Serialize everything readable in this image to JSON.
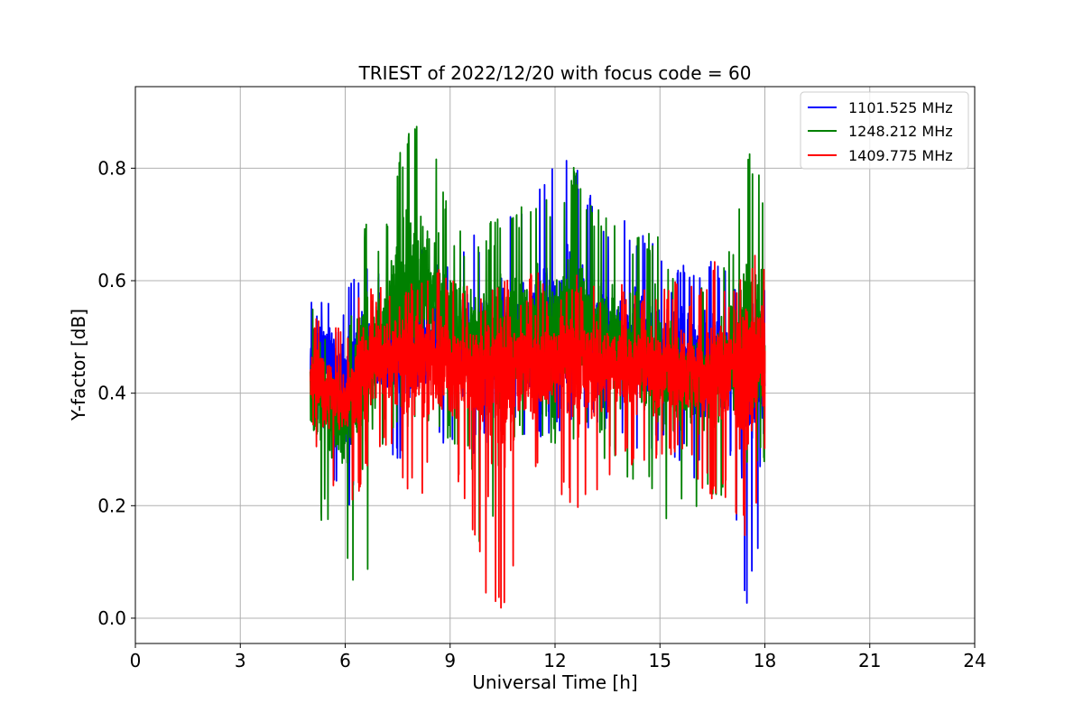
{
  "chart_data": {
    "type": "line",
    "title": "TRIEST of 2022/12/20 with focus code = 60",
    "xlabel": "Universal Time [h]",
    "ylabel": "Y-factor [dB]",
    "xlim": [
      0,
      24
    ],
    "ylim": [
      -0.045,
      0.945
    ],
    "xticks": [
      0,
      3,
      6,
      9,
      12,
      15,
      18,
      21,
      24
    ],
    "xtick_labels": [
      "0",
      "3",
      "6",
      "9",
      "12",
      "15",
      "18",
      "21",
      "24"
    ],
    "yticks": [
      0.0,
      0.2,
      0.4,
      0.6,
      0.8
    ],
    "ytick_labels": [
      "0.0",
      "0.2",
      "0.4",
      "0.6",
      "0.8"
    ],
    "grid": true,
    "legend_position": "top-right",
    "time_range_hours": [
      5.0,
      18.0
    ],
    "series": [
      {
        "name": "1101.525 MHz",
        "color": "#0000ff",
        "envelope": {
          "x": [
            5.0,
            5.5,
            6.0,
            6.5,
            7.0,
            7.5,
            8.0,
            8.5,
            9.0,
            9.5,
            10.0,
            10.5,
            11.0,
            11.5,
            12.0,
            12.5,
            13.0,
            13.5,
            14.0,
            14.5,
            15.0,
            15.5,
            16.0,
            16.5,
            17.0,
            17.5,
            18.0
          ],
          "mean": [
            0.46,
            0.47,
            0.43,
            0.45,
            0.47,
            0.47,
            0.48,
            0.49,
            0.48,
            0.47,
            0.49,
            0.5,
            0.5,
            0.5,
            0.51,
            0.51,
            0.5,
            0.49,
            0.48,
            0.48,
            0.47,
            0.47,
            0.47,
            0.46,
            0.46,
            0.44,
            0.44
          ],
          "max": [
            0.61,
            0.6,
            0.58,
            0.66,
            0.62,
            0.64,
            0.66,
            0.66,
            0.64,
            0.68,
            0.71,
            0.76,
            0.76,
            0.78,
            0.82,
            0.83,
            0.76,
            0.72,
            0.72,
            0.7,
            0.68,
            0.66,
            0.64,
            0.64,
            0.61,
            0.6,
            0.62
          ],
          "min": [
            0.3,
            0.32,
            0.12,
            0.28,
            0.3,
            0.28,
            0.3,
            0.32,
            0.3,
            0.27,
            0.3,
            0.33,
            0.3,
            0.32,
            0.33,
            0.32,
            0.34,
            0.32,
            0.3,
            0.29,
            0.3,
            0.28,
            0.24,
            0.22,
            0.27,
            0.0,
            0.18
          ]
        }
      },
      {
        "name": "1248.212 MHz",
        "color": "#008000",
        "envelope": {
          "x": [
            5.0,
            5.5,
            6.0,
            6.5,
            7.0,
            7.5,
            8.0,
            8.5,
            9.0,
            9.5,
            10.0,
            10.5,
            11.0,
            11.5,
            12.0,
            12.5,
            13.0,
            13.5,
            14.0,
            14.5,
            15.0,
            15.5,
            16.0,
            16.5,
            17.0,
            17.5,
            18.0
          ],
          "mean": [
            0.4,
            0.38,
            0.36,
            0.48,
            0.5,
            0.56,
            0.6,
            0.58,
            0.52,
            0.5,
            0.48,
            0.49,
            0.5,
            0.51,
            0.52,
            0.52,
            0.5,
            0.5,
            0.48,
            0.47,
            0.45,
            0.44,
            0.44,
            0.44,
            0.46,
            0.48,
            0.5
          ],
          "max": [
            0.56,
            0.5,
            0.45,
            0.72,
            0.68,
            0.83,
            0.9,
            0.85,
            0.72,
            0.68,
            0.7,
            0.72,
            0.74,
            0.76,
            0.73,
            0.82,
            0.74,
            0.73,
            0.7,
            0.68,
            0.7,
            0.6,
            0.58,
            0.6,
            0.66,
            0.84,
            0.77
          ],
          "min": [
            0.18,
            0.16,
            0.09,
            0.0,
            0.3,
            0.33,
            0.32,
            0.34,
            0.3,
            0.3,
            0.02,
            0.3,
            0.3,
            0.32,
            0.31,
            0.3,
            0.3,
            0.28,
            0.25,
            0.24,
            0.16,
            0.2,
            0.18,
            0.22,
            0.2,
            0.25,
            0.26
          ]
        }
      },
      {
        "name": "1409.775 MHz",
        "color": "#ff0000",
        "envelope": {
          "x": [
            5.0,
            5.5,
            6.0,
            6.5,
            7.0,
            7.5,
            8.0,
            8.5,
            9.0,
            9.5,
            10.0,
            10.5,
            11.0,
            11.5,
            12.0,
            12.5,
            13.0,
            13.5,
            14.0,
            14.5,
            15.0,
            15.5,
            16.0,
            16.5,
            17.0,
            17.5,
            18.0
          ],
          "mean": [
            0.43,
            0.41,
            0.38,
            0.45,
            0.47,
            0.47,
            0.48,
            0.47,
            0.46,
            0.45,
            0.45,
            0.46,
            0.46,
            0.46,
            0.47,
            0.47,
            0.46,
            0.46,
            0.45,
            0.45,
            0.45,
            0.45,
            0.44,
            0.44,
            0.45,
            0.46,
            0.47
          ],
          "max": [
            0.56,
            0.55,
            0.5,
            0.6,
            0.61,
            0.62,
            0.62,
            0.64,
            0.6,
            0.6,
            0.62,
            0.62,
            0.6,
            0.62,
            0.6,
            0.62,
            0.6,
            0.6,
            0.6,
            0.6,
            0.6,
            0.6,
            0.6,
            0.64,
            0.6,
            0.66,
            0.66
          ],
          "min": [
            0.34,
            0.24,
            0.2,
            0.22,
            0.3,
            0.27,
            0.19,
            0.25,
            0.23,
            0.2,
            0.03,
            0.0,
            0.15,
            0.26,
            0.22,
            0.18,
            0.2,
            0.25,
            0.27,
            0.25,
            0.26,
            0.26,
            0.25,
            0.2,
            0.22,
            0.11,
            0.26
          ]
        }
      }
    ]
  }
}
